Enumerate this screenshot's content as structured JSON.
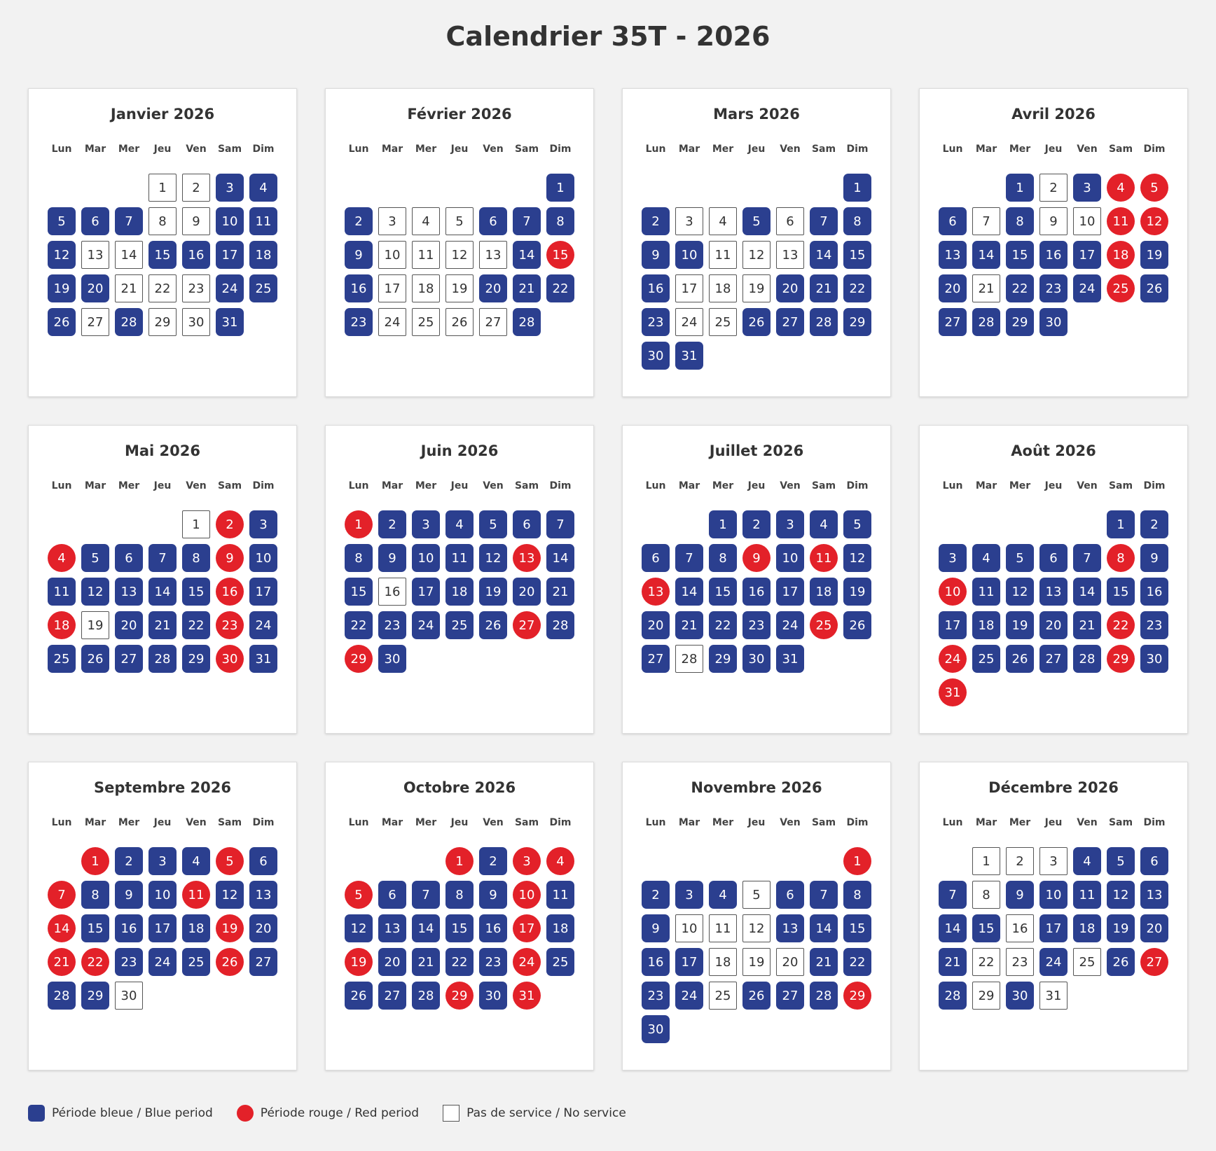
{
  "header": {
    "title": "Calendrier 35T - 2026"
  },
  "weekdays": [
    "Lun",
    "Mar",
    "Mer",
    "Jeu",
    "Ven",
    "Sam",
    "Dim"
  ],
  "legend": [
    {
      "code": "b",
      "label": "Période bleue / Blue period",
      "color": "#2b3f8f"
    },
    {
      "code": "r",
      "label": "Période rouge / Red period",
      "color": "#e32129"
    },
    {
      "code": "n",
      "label": "Pas de service / No service",
      "color": "#ffffff"
    }
  ],
  "months": [
    {
      "title": "Janvier 2026",
      "weeks": [
        [
          null,
          null,
          null,
          1,
          2,
          3,
          4
        ],
        [
          5,
          6,
          7,
          8,
          9,
          10,
          11
        ],
        [
          12,
          13,
          14,
          15,
          16,
          17,
          18
        ],
        [
          19,
          20,
          21,
          22,
          23,
          24,
          25
        ],
        [
          26,
          27,
          28,
          29,
          30,
          31,
          null
        ]
      ],
      "periods": "nnbbbbbnnbbbnnbbbbbbnnnbbbnbnnb"
    },
    {
      "title": "Février 2026",
      "weeks": [
        [
          null,
          null,
          null,
          null,
          null,
          null,
          1
        ],
        [
          2,
          3,
          4,
          5,
          6,
          7,
          8
        ],
        [
          9,
          10,
          11,
          12,
          13,
          14,
          15
        ],
        [
          16,
          17,
          18,
          19,
          20,
          21,
          22
        ],
        [
          23,
          24,
          25,
          26,
          27,
          28,
          null
        ]
      ],
      "periods": "bbnnnbbbbnnnnbrbnnnbbbbnnnnb"
    },
    {
      "title": "Mars 2026",
      "weeks": [
        [
          null,
          null,
          null,
          null,
          null,
          null,
          1
        ],
        [
          2,
          3,
          4,
          5,
          6,
          7,
          8
        ],
        [
          9,
          10,
          11,
          12,
          13,
          14,
          15
        ],
        [
          16,
          17,
          18,
          19,
          20,
          21,
          22
        ],
        [
          23,
          24,
          25,
          26,
          27,
          28,
          29
        ],
        [
          30,
          31,
          null,
          null,
          null,
          null,
          null
        ]
      ],
      "periods": "bbnnbnbbbbnnnbbbnnnbbbbnnbbbbbb"
    },
    {
      "title": "Avril 2026",
      "weeks": [
        [
          null,
          null,
          1,
          2,
          3,
          4,
          5
        ],
        [
          6,
          7,
          8,
          9,
          10,
          11,
          12
        ],
        [
          13,
          14,
          15,
          16,
          17,
          18,
          19
        ],
        [
          20,
          21,
          22,
          23,
          24,
          25,
          26
        ],
        [
          27,
          28,
          29,
          30,
          null,
          null,
          null
        ]
      ],
      "periods": "bnbrrbnbnnrrbbbbbrbbnbbbrbbbbb"
    },
    {
      "title": "Mai 2026",
      "weeks": [
        [
          null,
          null,
          null,
          null,
          1,
          2,
          3
        ],
        [
          4,
          5,
          6,
          7,
          8,
          9,
          10
        ],
        [
          11,
          12,
          13,
          14,
          15,
          16,
          17
        ],
        [
          18,
          19,
          20,
          21,
          22,
          23,
          24
        ],
        [
          25,
          26,
          27,
          28,
          29,
          30,
          31
        ]
      ],
      "periods": "nrbrbbbbrbbbbbbrbrnbbbrbbbbbbrb"
    },
    {
      "title": "Juin 2026",
      "weeks": [
        [
          1,
          2,
          3,
          4,
          5,
          6,
          7
        ],
        [
          8,
          9,
          10,
          11,
          12,
          13,
          14
        ],
        [
          15,
          16,
          17,
          18,
          19,
          20,
          21
        ],
        [
          22,
          23,
          24,
          25,
          26,
          27,
          28
        ],
        [
          29,
          30,
          null,
          null,
          null,
          null,
          null
        ]
      ],
      "periods": "rbbbbbbbbbbbrbbnbbbbbbbbbbrbrb"
    },
    {
      "title": "Juillet 2026",
      "weeks": [
        [
          null,
          null,
          1,
          2,
          3,
          4,
          5
        ],
        [
          6,
          7,
          8,
          9,
          10,
          11,
          12
        ],
        [
          13,
          14,
          15,
          16,
          17,
          18,
          19
        ],
        [
          20,
          21,
          22,
          23,
          24,
          25,
          26
        ],
        [
          27,
          28,
          29,
          30,
          31,
          null,
          null
        ]
      ],
      "periods": "bbbbbbbbrbrbrbbbbbbbbbbbrbbnbbb"
    },
    {
      "title": "Août 2026",
      "weeks": [
        [
          null,
          null,
          null,
          null,
          null,
          1,
          2
        ],
        [
          3,
          4,
          5,
          6,
          7,
          8,
          9
        ],
        [
          10,
          11,
          12,
          13,
          14,
          15,
          16
        ],
        [
          17,
          18,
          19,
          20,
          21,
          22,
          23
        ],
        [
          24,
          25,
          26,
          27,
          28,
          29,
          30
        ],
        [
          31,
          null,
          null,
          null,
          null,
          null,
          null
        ]
      ],
      "periods": "bbbbbbbrbrbbbbbbbbbbbrbrbbbbrbr"
    },
    {
      "title": "Septembre 2026",
      "weeks": [
        [
          null,
          1,
          2,
          3,
          4,
          5,
          6
        ],
        [
          7,
          8,
          9,
          10,
          11,
          12,
          13
        ],
        [
          14,
          15,
          16,
          17,
          18,
          19,
          20
        ],
        [
          21,
          22,
          23,
          24,
          25,
          26,
          27
        ],
        [
          28,
          29,
          30,
          null,
          null,
          null,
          null
        ]
      ],
      "periods": "rbbbrbrbbbrbbrbbbbrbrrbbbrbbbn"
    },
    {
      "title": "Octobre 2026",
      "weeks": [
        [
          null,
          null,
          null,
          1,
          2,
          3,
          4
        ],
        [
          5,
          6,
          7,
          8,
          9,
          10,
          11
        ],
        [
          12,
          13,
          14,
          15,
          16,
          17,
          18
        ],
        [
          19,
          20,
          21,
          22,
          23,
          24,
          25
        ],
        [
          26,
          27,
          28,
          29,
          30,
          31,
          null
        ]
      ],
      "periods": "rbrrrbbbbrbbbbbbrbrbbbbrbbbbrbr"
    },
    {
      "title": "Novembre 2026",
      "weeks": [
        [
          null,
          null,
          null,
          null,
          null,
          null,
          1
        ],
        [
          2,
          3,
          4,
          5,
          6,
          7,
          8
        ],
        [
          9,
          10,
          11,
          12,
          13,
          14,
          15
        ],
        [
          16,
          17,
          18,
          19,
          20,
          21,
          22
        ],
        [
          23,
          24,
          25,
          26,
          27,
          28,
          29
        ],
        [
          30,
          null,
          null,
          null,
          null,
          null,
          null
        ]
      ],
      "periods": "rbbbnbbbbnnnbbbbbnnnbbbbnbbbrb"
    },
    {
      "title": "Décembre 2026",
      "weeks": [
        [
          null,
          1,
          2,
          3,
          4,
          5,
          6
        ],
        [
          7,
          8,
          9,
          10,
          11,
          12,
          13
        ],
        [
          14,
          15,
          16,
          17,
          18,
          19,
          20
        ],
        [
          21,
          22,
          23,
          24,
          25,
          26,
          27
        ],
        [
          28,
          29,
          30,
          31,
          null,
          null,
          null
        ]
      ],
      "periods": "nnnbbbbnbbbbbbbnbbbbbnnbnbrbnbn"
    }
  ]
}
